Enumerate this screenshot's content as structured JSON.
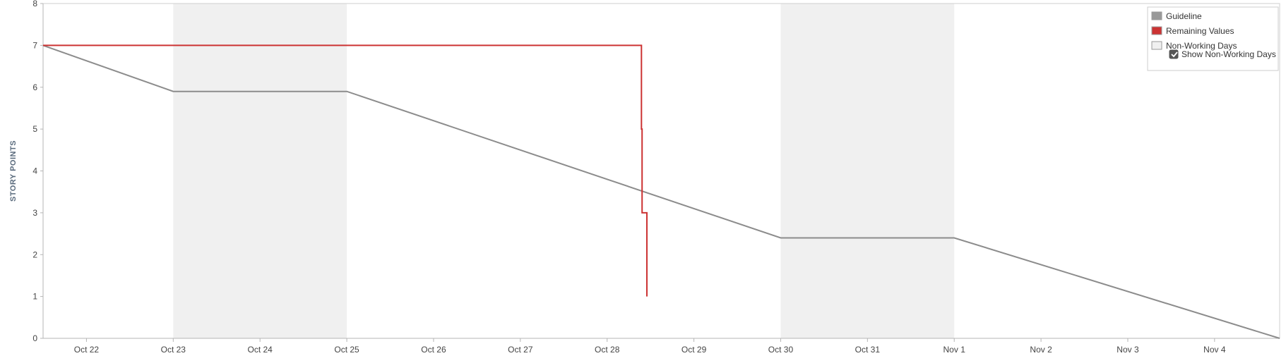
{
  "chart_data": {
    "type": "line",
    "ylabel": "STORY POINTS",
    "xlabel": "",
    "ylim": [
      0,
      8
    ],
    "yticks": [
      0,
      1,
      2,
      3,
      4,
      5,
      6,
      7,
      8
    ],
    "x_axis_type": "date",
    "xlim": [
      "2021-10-21 12:00",
      "2021-11-04 18:00"
    ],
    "xticks": [
      {
        "date": "2021-10-22",
        "label": "Oct 22"
      },
      {
        "date": "2021-10-23",
        "label": "Oct 23"
      },
      {
        "date": "2021-10-24",
        "label": "Oct 24"
      },
      {
        "date": "2021-10-25",
        "label": "Oct 25"
      },
      {
        "date": "2021-10-26",
        "label": "Oct 26"
      },
      {
        "date": "2021-10-27",
        "label": "Oct 27"
      },
      {
        "date": "2021-10-28",
        "label": "Oct 28"
      },
      {
        "date": "2021-10-29",
        "label": "Oct 29"
      },
      {
        "date": "2021-10-30",
        "label": "Oct 30"
      },
      {
        "date": "2021-10-31",
        "label": "Oct 31"
      },
      {
        "date": "2021-11-01",
        "label": "Nov 1"
      },
      {
        "date": "2021-11-02",
        "label": "Nov 2"
      },
      {
        "date": "2021-11-03",
        "label": "Nov 3"
      },
      {
        "date": "2021-11-04",
        "label": "Nov 4"
      }
    ],
    "non_working_days": [
      {
        "start": "2021-10-23",
        "end": "2021-10-25"
      },
      {
        "start": "2021-10-30",
        "end": "2021-11-01"
      }
    ],
    "series": [
      {
        "name": "Guideline",
        "color": "#8c8c8c",
        "points": [
          {
            "x": "2021-10-21 12:00",
            "y": 7
          },
          {
            "x": "2021-10-23 00:00",
            "y": 5.9
          },
          {
            "x": "2021-10-25 00:00",
            "y": 5.9
          },
          {
            "x": "2021-10-30 00:00",
            "y": 2.4
          },
          {
            "x": "2021-11-01 00:00",
            "y": 2.4
          },
          {
            "x": "2021-11-04 18:00",
            "y": 0
          }
        ]
      },
      {
        "name": "Remaining Values",
        "color": "#cc3333",
        "points": [
          {
            "x": "2021-10-21 12:00",
            "y": 7
          },
          {
            "x": "2021-10-28 09:30",
            "y": 7
          },
          {
            "x": "2021-10-28 09:30",
            "y": 5
          },
          {
            "x": "2021-10-28 09:40",
            "y": 5
          },
          {
            "x": "2021-10-28 09:40",
            "y": 3
          },
          {
            "x": "2021-10-28 11:00",
            "y": 3
          },
          {
            "x": "2021-10-28 11:00",
            "y": 1
          }
        ]
      }
    ],
    "legend": {
      "position": "top-right",
      "items": [
        {
          "label": "Guideline",
          "color": "#999999"
        },
        {
          "label": "Remaining Values",
          "color": "#cc3333"
        },
        {
          "label": "Non-Working Days",
          "color": "#f0f0f0"
        }
      ],
      "checkbox": {
        "label": "Show Non-Working Days",
        "checked": true
      }
    },
    "grid": false
  }
}
